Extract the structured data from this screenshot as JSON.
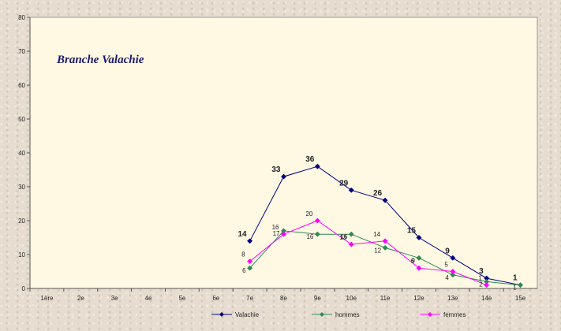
{
  "chart_data": {
    "type": "line",
    "title": "Branche Valachie",
    "categories": [
      "1ère",
      "2e",
      "3e",
      "4e",
      "5e",
      "6e",
      "7e",
      "8e",
      "9e",
      "10e",
      "11e",
      "12e",
      "13e",
      "14e",
      "15e"
    ],
    "ylim": [
      0,
      80
    ],
    "yticks": [
      0,
      10,
      20,
      30,
      40,
      50,
      60,
      70,
      80
    ],
    "grid": false,
    "legend_position": "bottom",
    "series": [
      {
        "name": "Valachie",
        "color": "#000080",
        "values": [
          null,
          null,
          null,
          null,
          null,
          null,
          14,
          33,
          36,
          29,
          26,
          15,
          9,
          3,
          1
        ],
        "labels": [
          "",
          "",
          "",
          "",
          "",
          "",
          "14",
          "33",
          "36",
          "29",
          "26",
          "15",
          "9",
          "3",
          "1"
        ]
      },
      {
        "name": "hommes",
        "color": "#2e8b57",
        "values": [
          null,
          null,
          null,
          null,
          null,
          null,
          6,
          17,
          16,
          16,
          12,
          9,
          4,
          2,
          1
        ],
        "labels": [
          "",
          "",
          "",
          "",
          "",
          "",
          "6",
          "17",
          "16",
          "16",
          "12",
          "9",
          "4",
          "2",
          "1"
        ]
      },
      {
        "name": "femmes",
        "color": "#ff00ff",
        "values": [
          null,
          null,
          null,
          null,
          null,
          null,
          8,
          16,
          20,
          13,
          14,
          6,
          5,
          1,
          null
        ],
        "labels": [
          "",
          "",
          "",
          "",
          "",
          "",
          "8",
          "16",
          "20",
          "13",
          "14",
          "6",
          "5",
          "1",
          ""
        ]
      }
    ]
  }
}
